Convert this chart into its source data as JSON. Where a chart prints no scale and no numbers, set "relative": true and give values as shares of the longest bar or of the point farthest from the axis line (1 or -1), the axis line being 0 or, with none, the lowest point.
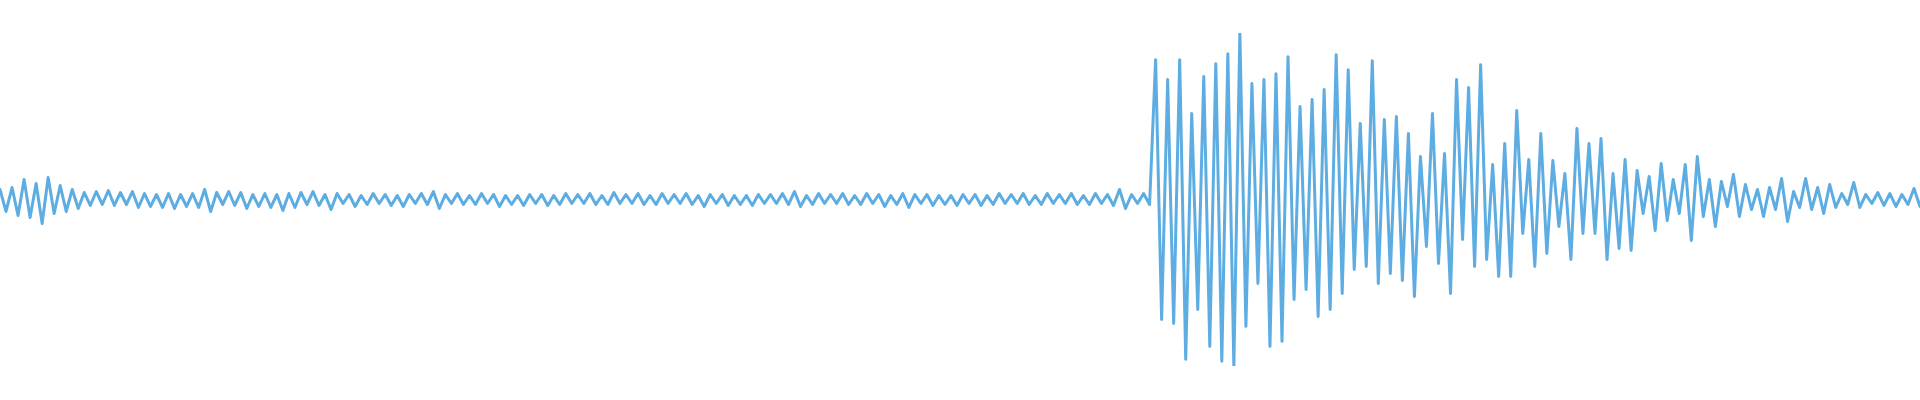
{
  "chart_data": {
    "type": "line",
    "relative": true,
    "color": "#5dade2",
    "tick_labels": false,
    "categories": [
      null,
      null,
      null,
      null,
      null,
      null,
      null,
      null,
      null,
      null,
      null,
      null,
      null,
      null,
      null,
      null,
      null,
      null,
      null,
      null,
      null,
      null,
      null,
      null,
      null,
      null,
      null,
      null,
      null,
      null,
      null,
      null,
      null,
      null,
      null,
      null,
      null,
      null,
      null,
      null,
      null,
      null,
      null,
      null,
      null,
      null,
      null,
      null,
      null,
      null,
      null,
      null,
      null,
      null,
      null,
      null,
      null,
      null,
      null,
      null,
      null,
      null,
      null,
      null,
      null,
      null,
      null,
      null,
      null,
      null,
      null,
      null,
      null,
      null,
      null,
      null,
      null,
      null,
      null,
      null,
      null,
      null,
      null,
      null,
      null,
      null,
      null,
      null,
      null,
      null,
      null,
      null,
      null,
      null,
      null,
      null,
      null,
      null,
      null,
      null,
      null,
      null,
      null,
      null,
      null,
      null,
      null,
      null,
      null,
      null,
      null,
      null,
      null,
      null,
      null,
      null,
      null,
      null,
      null,
      null,
      null,
      null,
      null,
      null,
      null,
      null,
      null,
      null,
      null,
      null,
      null,
      null,
      null,
      null,
      null,
      null,
      null,
      null,
      null,
      null,
      null,
      null,
      null,
      null,
      null,
      null,
      null,
      null,
      null,
      null,
      null,
      null,
      null,
      null,
      null,
      null,
      null,
      null,
      null,
      null,
      null,
      null,
      null,
      null,
      null,
      null,
      null,
      null,
      null,
      null,
      null,
      null,
      null,
      null,
      null,
      null,
      null,
      null,
      null,
      null,
      null,
      null,
      null,
      null,
      null,
      null,
      null,
      null,
      null,
      null,
      null,
      null,
      null,
      null,
      null,
      null,
      null,
      null,
      null,
      null,
      null,
      null,
      null,
      null,
      null,
      null,
      null,
      null,
      null,
      null,
      null,
      null,
      null,
      null,
      null,
      null,
      null,
      null,
      null,
      null,
      null,
      null,
      null,
      null,
      null,
      null,
      null,
      null,
      null,
      null,
      null,
      null,
      null,
      null,
      null,
      null,
      null,
      null,
      null,
      null,
      null,
      null,
      null,
      null,
      null,
      null,
      null,
      null,
      null,
      null,
      null,
      null,
      null,
      null,
      null,
      null,
      null,
      null,
      null,
      null,
      null,
      null,
      null,
      null,
      null,
      null,
      null,
      null,
      null,
      null,
      null,
      null,
      null,
      null,
      null,
      null,
      null,
      null,
      null,
      null,
      null,
      null,
      null,
      null,
      null,
      null,
      null,
      null,
      null,
      null,
      null,
      null,
      null,
      null,
      null,
      null,
      null,
      null,
      null,
      null,
      null,
      null,
      null,
      null,
      null,
      null,
      null,
      null,
      null,
      null,
      null,
      null,
      null,
      null,
      null,
      null,
      null,
      null,
      null,
      null
    ],
    "values": [
      0.53,
      0.464,
      0.536,
      0.452,
      0.56,
      0.446,
      0.548,
      0.428,
      0.566,
      0.458,
      0.542,
      0.464,
      0.53,
      0.473,
      0.521,
      0.482,
      0.524,
      0.485,
      0.527,
      0.482,
      0.521,
      0.485,
      0.524,
      0.476,
      0.518,
      0.479,
      0.515,
      0.476,
      0.518,
      0.473,
      0.515,
      0.479,
      0.518,
      0.476,
      0.53,
      0.464,
      0.521,
      0.485,
      0.524,
      0.482,
      0.521,
      0.473,
      0.515,
      0.479,
      0.518,
      0.476,
      0.515,
      0.467,
      0.518,
      0.476,
      0.521,
      0.485,
      0.524,
      0.482,
      0.515,
      0.47,
      0.518,
      0.488,
      0.515,
      0.479,
      0.512,
      0.485,
      0.518,
      0.488,
      0.515,
      0.482,
      0.512,
      0.479,
      0.515,
      0.488,
      0.518,
      0.485,
      0.524,
      0.473,
      0.515,
      0.488,
      0.518,
      0.485,
      0.512,
      0.485,
      0.518,
      0.488,
      0.515,
      0.479,
      0.512,
      0.485,
      0.512,
      0.482,
      0.515,
      0.488,
      0.515,
      0.482,
      0.512,
      0.485,
      0.518,
      0.488,
      0.515,
      0.488,
      0.518,
      0.485,
      0.512,
      0.485,
      0.521,
      0.488,
      0.515,
      0.488,
      0.518,
      0.485,
      0.512,
      0.485,
      0.518,
      0.488,
      0.515,
      0.488,
      0.518,
      0.485,
      0.512,
      0.479,
      0.515,
      0.488,
      0.515,
      0.482,
      0.512,
      0.485,
      0.512,
      0.482,
      0.515,
      0.488,
      0.515,
      0.488,
      0.518,
      0.485,
      0.524,
      0.479,
      0.512,
      0.485,
      0.518,
      0.488,
      0.515,
      0.488,
      0.518,
      0.485,
      0.512,
      0.485,
      0.518,
      0.488,
      0.515,
      0.479,
      0.512,
      0.485,
      0.518,
      0.476,
      0.515,
      0.488,
      0.515,
      0.482,
      0.512,
      0.485,
      0.512,
      0.482,
      0.515,
      0.488,
      0.515,
      0.482,
      0.512,
      0.485,
      0.518,
      0.488,
      0.515,
      0.488,
      0.518,
      0.485,
      0.512,
      0.485,
      0.518,
      0.488,
      0.515,
      0.488,
      0.518,
      0.485,
      0.512,
      0.485,
      0.518,
      0.488,
      0.515,
      0.482,
      0.53,
      0.473,
      0.515,
      0.488,
      0.518,
      0.485,
      0.92,
      0.14,
      0.86,
      0.128,
      0.92,
      0.02,
      0.758,
      0.17,
      0.869,
      0.059,
      0.908,
      0.014,
      0.938,
      0.0,
      1.0,
      0.119,
      0.848,
      0.248,
      0.86,
      0.059,
      0.878,
      0.074,
      0.929,
      0.2,
      0.779,
      0.23,
      0.8,
      0.149,
      0.83,
      0.17,
      0.935,
      0.218,
      0.89,
      0.29,
      0.728,
      0.299,
      0.917,
      0.248,
      0.74,
      0.278,
      0.749,
      0.257,
      0.698,
      0.209,
      0.629,
      0.359,
      0.758,
      0.308,
      0.638,
      0.218,
      0.86,
      0.38,
      0.836,
      0.299,
      0.905,
      0.32,
      0.605,
      0.269,
      0.668,
      0.269,
      0.767,
      0.398,
      0.62,
      0.299,
      0.698,
      0.338,
      0.617,
      0.419,
      0.578,
      0.32,
      0.713,
      0.398,
      0.668,
      0.398,
      0.683,
      0.32,
      0.578,
      0.353,
      0.62,
      0.347,
      0.587,
      0.458,
      0.569,
      0.407,
      0.608,
      0.437,
      0.56,
      0.458,
      0.605,
      0.377,
      0.629,
      0.449,
      0.56,
      0.419,
      0.554,
      0.479,
      0.575,
      0.449,
      0.545,
      0.47,
      0.53,
      0.449,
      0.536,
      0.47,
      0.563,
      0.434,
      0.524,
      0.476,
      0.563,
      0.47,
      0.536,
      0.458,
      0.545,
      0.476,
      0.518,
      0.485,
      0.551,
      0.476,
      0.515,
      0.488,
      0.521,
      0.482,
      0.518,
      0.479,
      0.515,
      0.485,
      0.533,
      0.479
    ]
  }
}
